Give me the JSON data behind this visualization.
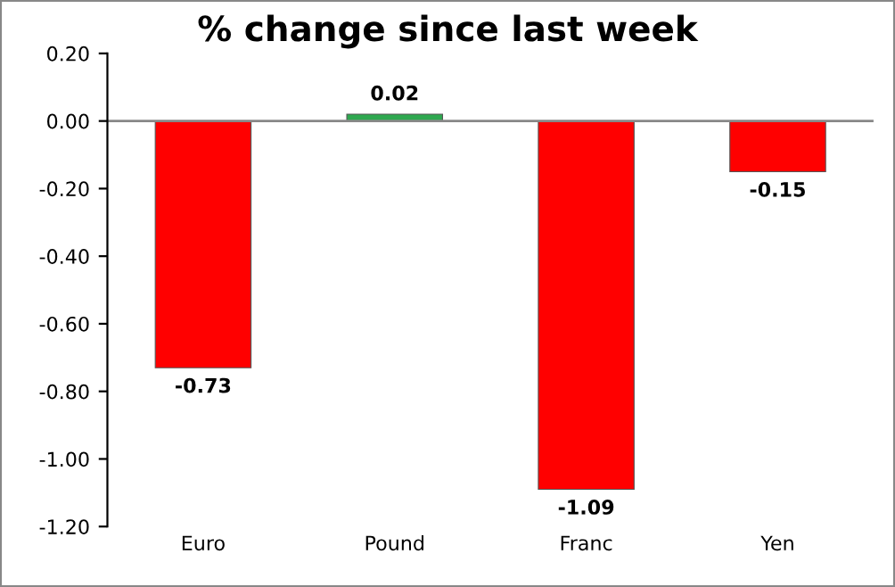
{
  "chart_data": {
    "type": "bar",
    "title": "% change since last week",
    "categories": [
      "Euro",
      "Pound",
      "Franc",
      "Yen"
    ],
    "values": [
      -0.73,
      0.02,
      -1.09,
      -0.15
    ],
    "colors": [
      "#ff0000",
      "#2ea84f",
      "#ff0000",
      "#ff0000"
    ],
    "ylim": [
      -1.2,
      0.2
    ],
    "yticks": [
      {
        "value": -1.2,
        "label": "-1.20"
      },
      {
        "value": -1.0,
        "label": "-1.00"
      },
      {
        "value": -0.8,
        "label": "-0.80"
      },
      {
        "value": -0.6,
        "label": "-0.60"
      },
      {
        "value": -0.4,
        "label": "-0.40"
      },
      {
        "value": -0.2,
        "label": "-0.20"
      },
      {
        "value": 0,
        "label": "0.00"
      },
      {
        "value": 0.2,
        "label": "0.20"
      }
    ],
    "data_labels": true,
    "legend": false
  }
}
